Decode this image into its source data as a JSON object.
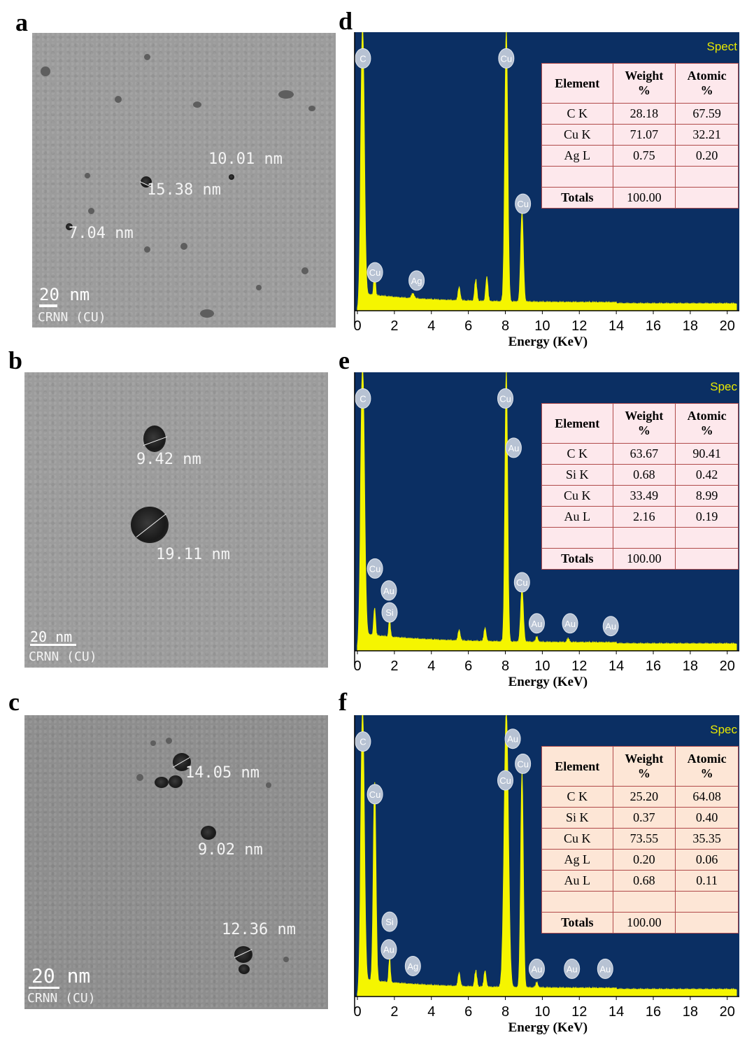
{
  "panels": {
    "a": {
      "label": "a",
      "measures": [
        "10.01 nm",
        "15.38 nm",
        "7.04 nm"
      ],
      "scale": "20 nm",
      "crnn": "CRNN (CU)"
    },
    "b": {
      "label": "b",
      "measures": [
        "9.42 nm",
        "19.11 nm"
      ],
      "scale": "20 nm",
      "crnn": "CRNN (CU)"
    },
    "c": {
      "label": "c",
      "measures": [
        "14.05 nm",
        "9.02 nm",
        "12.36 nm"
      ],
      "scale": "20 nm",
      "crnn": "CRNN (CU)"
    }
  },
  "colors": {
    "eds_bg": "#0b2f63",
    "spectrum": "#f5f500",
    "tem": "#9c9c9c"
  },
  "chart_data": [
    {
      "id": "d",
      "type": "area",
      "label": "d",
      "spec_text": "Spect",
      "xlabel": "Energy (KeV)",
      "xlim": [
        0,
        20.5
      ],
      "ticks": [
        0,
        2,
        4,
        6,
        8,
        10,
        12,
        14,
        16,
        18,
        20
      ],
      "peaks": [
        {
          "x": 0.28,
          "h": 1.0,
          "w": 0.13
        },
        {
          "x": 0.93,
          "h": 0.1,
          "w": 0.06
        },
        {
          "x": 8.05,
          "h": 1.0,
          "w": 0.11
        },
        {
          "x": 8.9,
          "h": 0.33,
          "w": 0.1
        },
        {
          "x": 5.5,
          "h": 0.05,
          "w": 0.08
        },
        {
          "x": 6.4,
          "h": 0.08,
          "w": 0.08
        },
        {
          "x": 7.0,
          "h": 0.09,
          "w": 0.08
        },
        {
          "x": 3.0,
          "h": 0.02,
          "w": 0.1
        }
      ],
      "element_labels": [
        {
          "t": "C",
          "x": 0.3,
          "h": 0.92
        },
        {
          "t": "Cu",
          "x": 8.05,
          "h": 0.92
        },
        {
          "t": "Cu",
          "x": 8.95,
          "h": 0.39
        },
        {
          "t": "Cu",
          "x": 0.95,
          "h": 0.14
        },
        {
          "t": "Ag",
          "x": 3.2,
          "h": 0.11
        }
      ],
      "table": {
        "headers": [
          "Element",
          "Weight %",
          "Atomic %"
        ],
        "rows": [
          [
            "C K",
            "28.18",
            "67.59"
          ],
          [
            "Cu K",
            "71.07",
            "32.21"
          ],
          [
            "Ag L",
            "0.75",
            "0.20"
          ],
          [
            "",
            "",
            " "
          ]
        ],
        "totals": [
          "Totals",
          "100.00",
          ""
        ]
      }
    },
    {
      "id": "e",
      "type": "area",
      "label": "e",
      "spec_text": "Spec",
      "xlabel": "Energy (KeV)",
      "xlim": [
        0,
        20.5
      ],
      "ticks": [
        0,
        2,
        4,
        6,
        8,
        10,
        12,
        14,
        16,
        18,
        20
      ],
      "peaks": [
        {
          "x": 0.28,
          "h": 1.0,
          "w": 0.14
        },
        {
          "x": 0.93,
          "h": 0.1,
          "w": 0.07
        },
        {
          "x": 1.74,
          "h": 0.07,
          "w": 0.06
        },
        {
          "x": 8.05,
          "h": 1.0,
          "w": 0.1
        },
        {
          "x": 8.9,
          "h": 0.2,
          "w": 0.1
        },
        {
          "x": 5.5,
          "h": 0.04,
          "w": 0.08
        },
        {
          "x": 6.9,
          "h": 0.05,
          "w": 0.08
        },
        {
          "x": 9.7,
          "h": 0.02,
          "w": 0.08
        },
        {
          "x": 11.4,
          "h": 0.015,
          "w": 0.08
        }
      ],
      "element_labels": [
        {
          "t": "C",
          "x": 0.3,
          "h": 0.92
        },
        {
          "t": "Cu",
          "x": 8.0,
          "h": 0.92
        },
        {
          "t": "Au",
          "x": 8.45,
          "h": 0.74
        },
        {
          "t": "Cu",
          "x": 8.9,
          "h": 0.25
        },
        {
          "t": "Cu",
          "x": 0.95,
          "h": 0.3
        },
        {
          "t": "Au",
          "x": 1.7,
          "h": 0.22
        },
        {
          "t": "Si",
          "x": 1.74,
          "h": 0.14
        },
        {
          "t": "Au",
          "x": 9.7,
          "h": 0.1
        },
        {
          "t": "Au",
          "x": 11.5,
          "h": 0.1
        },
        {
          "t": "Au",
          "x": 13.7,
          "h": 0.09
        }
      ],
      "table": {
        "headers": [
          "Element",
          "Weight %",
          "Atomic %"
        ],
        "rows": [
          [
            "C K",
            "63.67",
            "90.41"
          ],
          [
            "Si K",
            "0.68",
            "0.42"
          ],
          [
            "Cu K",
            "33.49",
            "8.99"
          ],
          [
            "Au L",
            "2.16",
            "0.19"
          ],
          [
            "",
            "",
            " "
          ]
        ],
        "totals": [
          "Totals",
          "100.00",
          ""
        ]
      }
    },
    {
      "id": "f",
      "type": "area",
      "label": "f",
      "spec_text": "Spec",
      "xlabel": "Energy (KeV)",
      "xlim": [
        0,
        20.5
      ],
      "ticks": [
        0,
        2,
        4,
        6,
        8,
        10,
        12,
        14,
        16,
        18,
        20
      ],
      "peaks": [
        {
          "x": 0.28,
          "h": 1.0,
          "w": 0.13
        },
        {
          "x": 0.93,
          "h": 0.72,
          "w": 0.1
        },
        {
          "x": 1.74,
          "h": 0.09,
          "w": 0.06
        },
        {
          "x": 8.05,
          "h": 1.0,
          "w": 0.16
        },
        {
          "x": 8.9,
          "h": 0.78,
          "w": 0.1
        },
        {
          "x": 5.5,
          "h": 0.05,
          "w": 0.08
        },
        {
          "x": 6.4,
          "h": 0.06,
          "w": 0.08
        },
        {
          "x": 6.9,
          "h": 0.06,
          "w": 0.08
        },
        {
          "x": 9.7,
          "h": 0.02,
          "w": 0.08
        }
      ],
      "element_labels": [
        {
          "t": "C",
          "x": 0.3,
          "h": 0.92
        },
        {
          "t": "Cu",
          "x": 0.95,
          "h": 0.73
        },
        {
          "t": "Au",
          "x": 8.4,
          "h": 0.93
        },
        {
          "t": "Cu",
          "x": 8.95,
          "h": 0.84
        },
        {
          "t": "Cu",
          "x": 8.0,
          "h": 0.78
        },
        {
          "t": "Si",
          "x": 1.74,
          "h": 0.27
        },
        {
          "t": "Au",
          "x": 1.7,
          "h": 0.17
        },
        {
          "t": "Ag",
          "x": 3.0,
          "h": 0.11
        },
        {
          "t": "Au",
          "x": 9.7,
          "h": 0.1
        },
        {
          "t": "Au",
          "x": 11.6,
          "h": 0.1
        },
        {
          "t": "Au",
          "x": 13.4,
          "h": 0.1
        }
      ],
      "table": {
        "headers": [
          "Element",
          "Weight %",
          "Atomic %"
        ],
        "rows": [
          [
            "C K",
            "25.20",
            "64.08"
          ],
          [
            "Si K",
            "0.37",
            "0.40"
          ],
          [
            "Cu K",
            "73.55",
            "35.35"
          ],
          [
            "Ag L",
            "0.20",
            "0.06"
          ],
          [
            "Au L",
            "0.68",
            "0.11"
          ],
          [
            "",
            "",
            " "
          ]
        ],
        "totals": [
          "Totals",
          "100.00",
          ""
        ]
      }
    }
  ]
}
